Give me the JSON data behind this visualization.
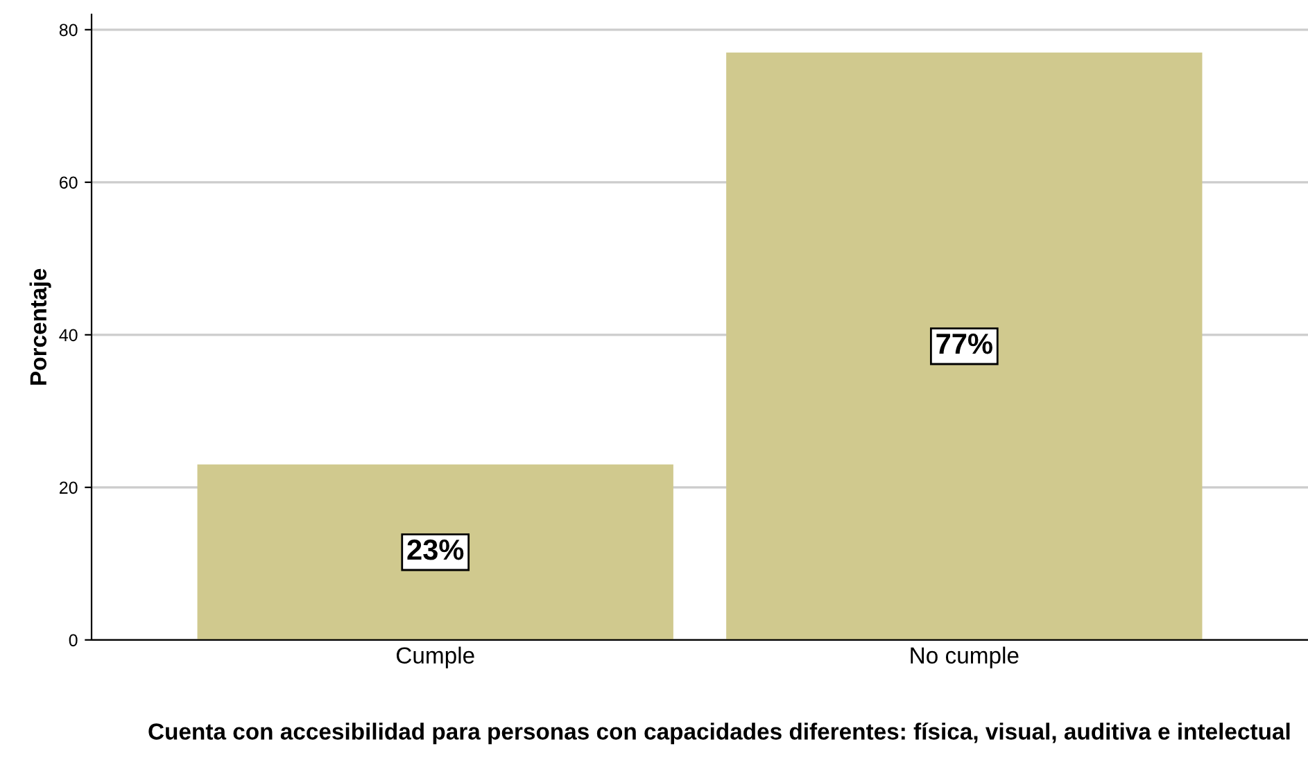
{
  "chart_data": {
    "type": "bar",
    "categories": [
      "Cumple",
      "No cumple"
    ],
    "values": [
      23,
      77
    ],
    "value_labels": [
      "23%",
      "77%"
    ],
    "color": "#d0c98e",
    "xlabel": "Cuenta con accesibilidad para personas con capacidades diferentes: física, visual, auditiva e intelectual",
    "ylabel": "Porcentaje",
    "ylim": [
      0,
      82
    ],
    "yticks": [
      0,
      20,
      40,
      60,
      80
    ],
    "grid": "y",
    "legend": false
  }
}
